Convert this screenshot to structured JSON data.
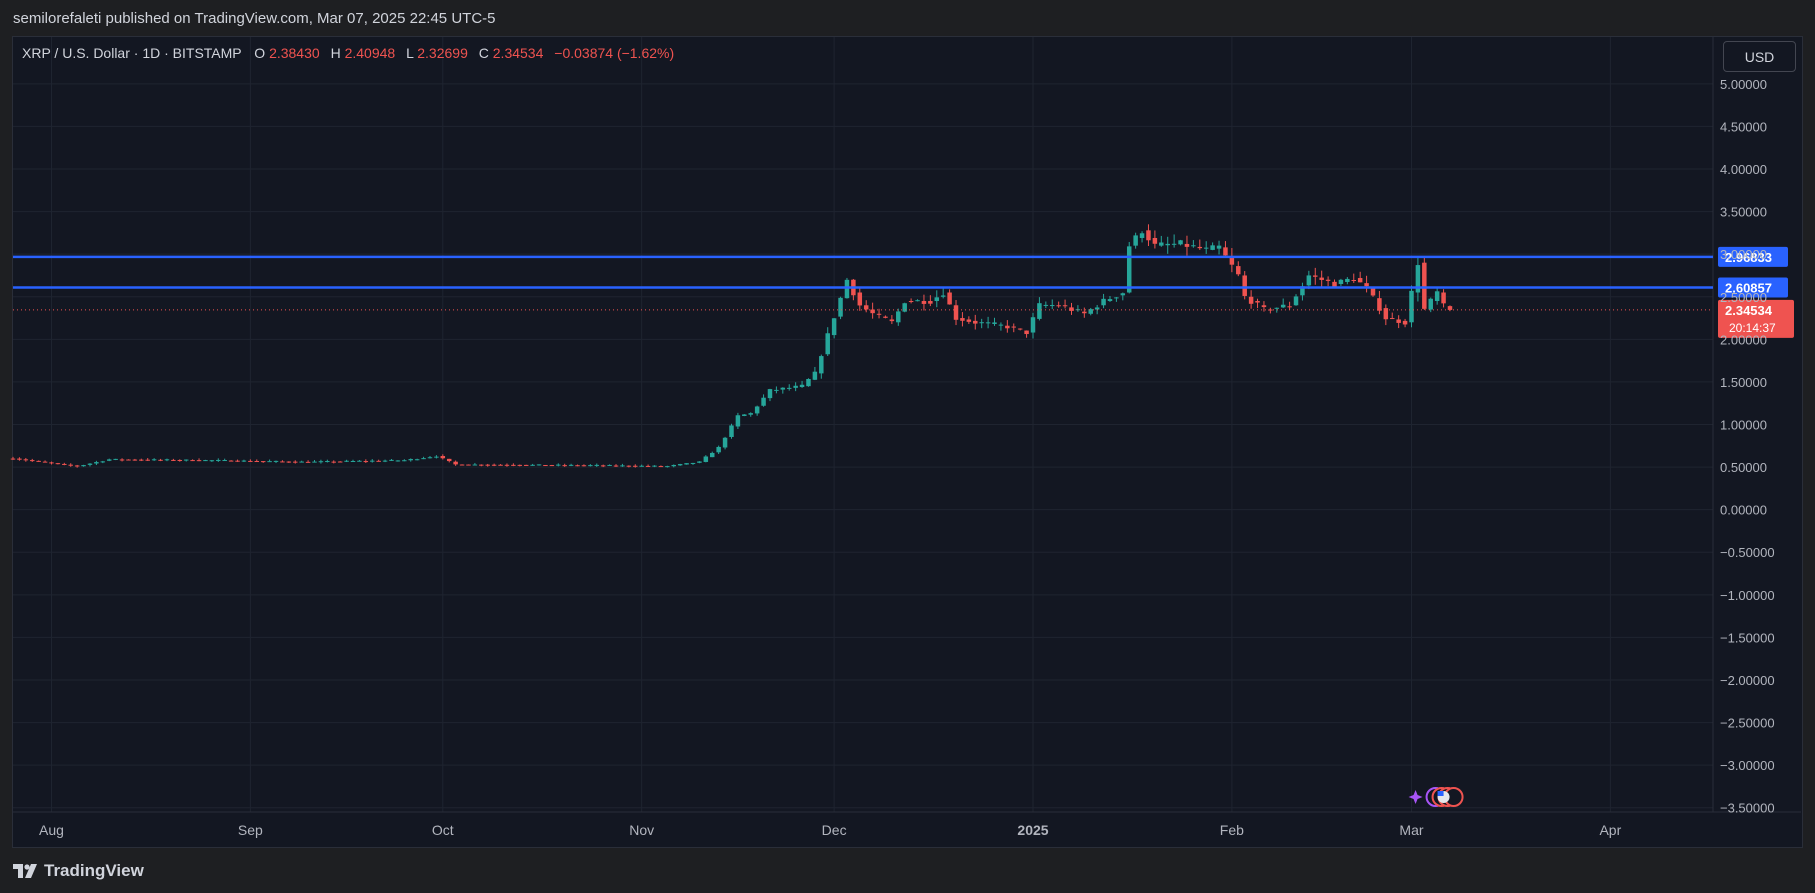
{
  "header": {
    "publish_text": "semilorefaleti published on TradingView.com, Mar 07, 2025 22:45 UTC-5"
  },
  "legend": {
    "symbol": "XRP / U.S. Dollar · 1D · BITSTAMP",
    "open_label": "O",
    "open": "2.38430",
    "high_label": "H",
    "high": "2.40948",
    "low_label": "L",
    "low": "2.32699",
    "close_label": "C",
    "close": "2.34534",
    "change": "−0.03874 (−1.62%)"
  },
  "currency_button": "USD",
  "footer": {
    "brand": "TradingView"
  },
  "colors": {
    "up": "#26a69a",
    "down": "#ef5350",
    "level": "#2962ff",
    "background": "#131722",
    "grid": "#1f2430"
  },
  "chart_data": {
    "type": "candlestick",
    "y_axis": {
      "range": [
        -3.55,
        5.55
      ],
      "ticks": [
        "5.00000",
        "4.50000",
        "4.00000",
        "3.50000",
        "3.00000",
        "2.50000",
        "2.00000",
        "1.50000",
        "1.00000",
        "0.50000",
        "0.00000",
        "−0.50000",
        "−1.00000",
        "−1.50000",
        "−2.00000",
        "−2.50000",
        "−3.00000",
        "−3.50000"
      ]
    },
    "x_axis": {
      "range": [
        "2024-07-26",
        "2025-04-17"
      ],
      "ticks": [
        {
          "date": "2024-08-01",
          "label": "Aug"
        },
        {
          "date": "2024-09-01",
          "label": "Sep"
        },
        {
          "date": "2024-10-01",
          "label": "Oct"
        },
        {
          "date": "2024-11-01",
          "label": "Nov"
        },
        {
          "date": "2024-12-01",
          "label": "Dec"
        },
        {
          "date": "2025-01-01",
          "label": "2025"
        },
        {
          "date": "2025-02-01",
          "label": "Feb"
        },
        {
          "date": "2025-03-01",
          "label": "Mar"
        },
        {
          "date": "2025-04-01",
          "label": "Apr"
        }
      ]
    },
    "horizontal_levels": [
      {
        "value": 2.96833,
        "label": "2.96833"
      },
      {
        "value": 2.60857,
        "label": "2.60857"
      }
    ],
    "last_price": {
      "value": 2.34534,
      "label": "2.34534",
      "countdown": "20:14:37"
    },
    "anchors": [
      [
        "2024-07-26",
        0.6
      ],
      [
        "2024-08-05",
        0.51
      ],
      [
        "2024-08-10",
        0.59
      ],
      [
        "2024-08-25",
        0.58
      ],
      [
        "2024-09-10",
        0.56
      ],
      [
        "2024-09-25",
        0.58
      ],
      [
        "2024-09-30",
        0.63
      ],
      [
        "2024-10-03",
        0.53
      ],
      [
        "2024-10-25",
        0.52
      ],
      [
        "2024-11-05",
        0.51
      ],
      [
        "2024-11-10",
        0.56
      ],
      [
        "2024-11-13",
        0.73
      ],
      [
        "2024-11-16",
        1.1
      ],
      [
        "2024-11-18",
        1.13
      ],
      [
        "2024-11-21",
        1.4
      ],
      [
        "2024-11-26",
        1.45
      ],
      [
        "2024-11-28",
        1.6
      ],
      [
        "2024-11-30",
        2.05
      ],
      [
        "2024-12-03",
        2.7
      ],
      [
        "2024-12-05",
        2.4
      ],
      [
        "2024-12-07",
        2.3
      ],
      [
        "2024-12-10",
        2.2
      ],
      [
        "2024-12-12",
        2.45
      ],
      [
        "2024-12-16",
        2.45
      ],
      [
        "2024-12-18",
        2.55
      ],
      [
        "2024-12-20",
        2.25
      ],
      [
        "2024-12-23",
        2.2
      ],
      [
        "2024-12-28",
        2.15
      ],
      [
        "2024-12-31",
        2.08
      ],
      [
        "2025-01-02",
        2.4
      ],
      [
        "2025-01-05",
        2.4
      ],
      [
        "2025-01-09",
        2.3
      ],
      [
        "2025-01-12",
        2.45
      ],
      [
        "2025-01-15",
        2.55
      ],
      [
        "2025-01-16",
        3.1
      ],
      [
        "2025-01-18",
        3.28
      ],
      [
        "2025-01-20",
        3.1
      ],
      [
        "2025-01-24",
        3.12
      ],
      [
        "2025-01-28",
        3.05
      ],
      [
        "2025-01-30",
        3.08
      ],
      [
        "2025-02-02",
        2.75
      ],
      [
        "2025-02-03",
        2.5
      ],
      [
        "2025-02-06",
        2.35
      ],
      [
        "2025-02-10",
        2.4
      ],
      [
        "2025-02-13",
        2.75
      ],
      [
        "2025-02-17",
        2.65
      ],
      [
        "2025-02-20",
        2.72
      ],
      [
        "2025-02-22",
        2.6
      ],
      [
        "2025-02-25",
        2.25
      ],
      [
        "2025-02-28",
        2.2
      ],
      [
        "2025-03-02",
        2.9
      ],
      [
        "2025-03-03",
        2.35
      ],
      [
        "2025-03-05",
        2.55
      ],
      [
        "2025-03-06",
        2.39
      ],
      [
        "2025-03-07",
        2.34534
      ]
    ]
  }
}
